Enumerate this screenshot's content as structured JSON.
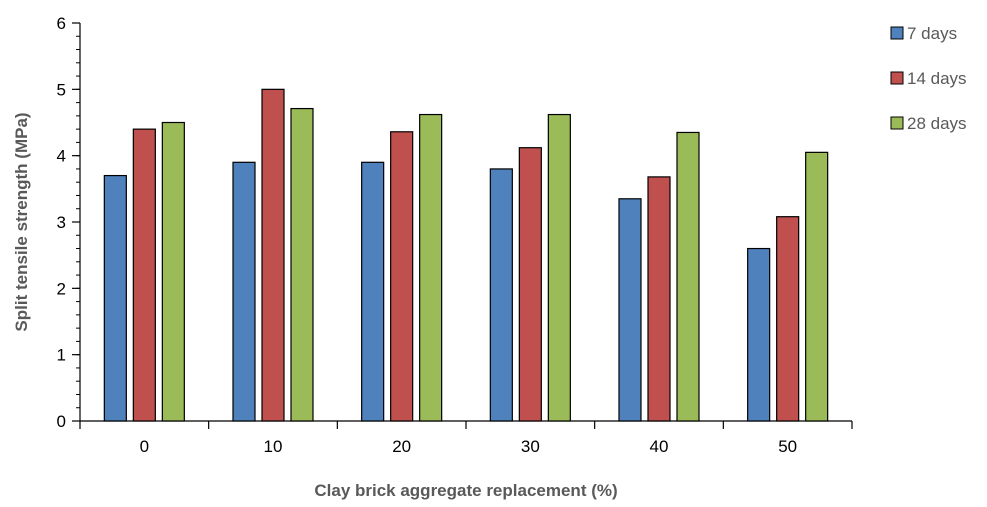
{
  "chart_data": {
    "type": "bar",
    "title": "",
    "xlabel": "Clay brick aggregate replacement (%)",
    "ylabel": "Split tensile strength (MPa)",
    "categories": [
      "0",
      "10",
      "20",
      "30",
      "40",
      "50"
    ],
    "ylim": [
      0,
      6
    ],
    "y_major_ticks": [
      0,
      1,
      2,
      3,
      4,
      5,
      6
    ],
    "y_minor_step": 0.2,
    "grid": false,
    "legend_position": "top-right",
    "series": [
      {
        "name": "7 days",
        "color": "#4F81BD",
        "values": [
          3.7,
          3.9,
          3.9,
          3.8,
          3.35,
          2.6
        ]
      },
      {
        "name": "14 days",
        "color": "#C0504D",
        "values": [
          4.4,
          5.0,
          4.36,
          4.12,
          3.68,
          3.08
        ]
      },
      {
        "name": "28 days",
        "color": "#9BBB59",
        "values": [
          4.5,
          4.71,
          4.62,
          4.62,
          4.35,
          4.05
        ]
      }
    ]
  }
}
